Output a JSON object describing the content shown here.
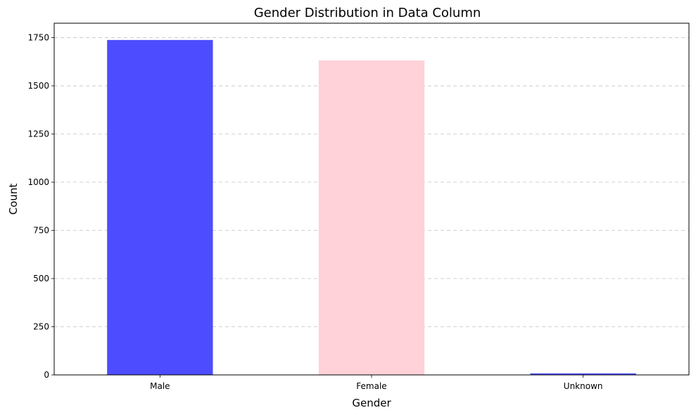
{
  "chart_data": {
    "type": "bar",
    "title": "Gender Distribution in Data Column",
    "xlabel": "Gender",
    "ylabel": "Count",
    "categories": [
      "Male",
      "Female",
      "Unknown"
    ],
    "values": [
      1738,
      1632,
      8
    ],
    "colors": [
      "#4d4dff",
      "#ffd1d8",
      "#4d4dff"
    ],
    "ylim": [
      0,
      1825
    ],
    "yticks": [
      0,
      250,
      500,
      750,
      1000,
      1250,
      1500,
      1750
    ],
    "ytick_labels": [
      "0",
      "250",
      "500",
      "750",
      "1000",
      "1250",
      "1500",
      "1750"
    ],
    "grid": "y-dashed",
    "legend": "none"
  }
}
